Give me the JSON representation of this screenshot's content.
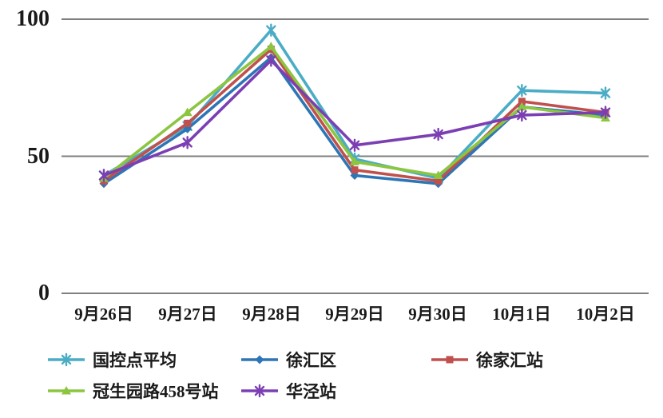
{
  "chart_data": {
    "type": "line",
    "categories": [
      "9月26日",
      "9月27日",
      "9月28日",
      "9月29日",
      "9月30日",
      "10月1日",
      "10月2日"
    ],
    "series": [
      {
        "name": "国控点平均",
        "color": "#4BACC6",
        "marker": "asterisk",
        "values": [
          43,
          61,
          96,
          49,
          42,
          74,
          73
        ]
      },
      {
        "name": "徐汇区",
        "color": "#2E75B6",
        "marker": "diamond",
        "values": [
          40,
          60,
          86,
          43,
          40,
          68,
          65
        ]
      },
      {
        "name": "徐家汇站",
        "color": "#C0504D",
        "marker": "square",
        "values": [
          41,
          62,
          89,
          45,
          41,
          70,
          66
        ]
      },
      {
        "name": "冠生园路458号站",
        "color": "#8CC540",
        "marker": "triangle",
        "values": [
          42,
          66,
          90,
          48,
          43,
          68,
          64
        ]
      },
      {
        "name": "华泾站",
        "color": "#7B3FB3",
        "marker": "asterisk",
        "values": [
          43,
          55,
          85,
          54,
          58,
          65,
          66
        ]
      }
    ],
    "yticks": [
      0,
      50,
      100
    ],
    "ylim": [
      0,
      100
    ],
    "xlabel": "",
    "ylabel": "",
    "title": "",
    "grid": "horizontal",
    "grid_color": "#7F7F7F",
    "legend_position": "bottom"
  }
}
